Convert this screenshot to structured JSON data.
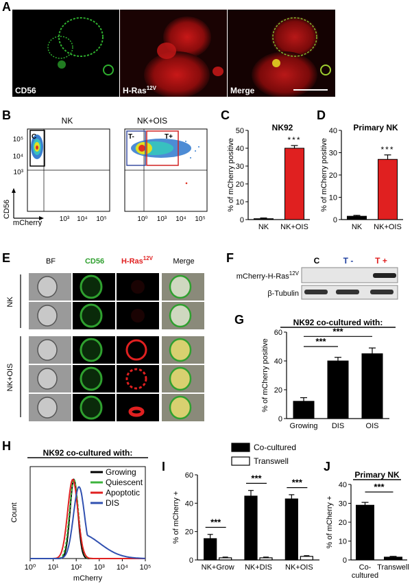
{
  "panel_letters": [
    "A",
    "B",
    "C",
    "D",
    "E",
    "F",
    "G",
    "H",
    "I",
    "J"
  ],
  "panelA": {
    "labels": [
      "CD56",
      "H-Ras",
      "Merge"
    ],
    "ras_sup": "12V"
  },
  "panelB": {
    "titles": [
      "NK",
      "NK+OIS"
    ],
    "gates": [
      "C",
      "T-",
      "T+"
    ],
    "y_axis": "CD56",
    "x_axis": "mCherry",
    "yticks": [
      "10⁵",
      "10⁴",
      "10³"
    ],
    "xticks_left": [
      "10³",
      "10⁴",
      "10⁵"
    ],
    "xticks_right": [
      "10⁰",
      "10³",
      "10⁴",
      "10⁵"
    ]
  },
  "panelE": {
    "col_headers": [
      "BF",
      "CD56",
      "H-Ras",
      "Merge"
    ],
    "ras_sup": "12V",
    "row_groups": [
      "NK",
      "NK+OIS"
    ],
    "colors": {
      "cd56": "#2fa02f",
      "ras": "#e02020"
    }
  },
  "panelF": {
    "lanes": [
      "C",
      "T -",
      "T +"
    ],
    "rows": [
      "mCherry-H-Ras",
      "β-Tubulin"
    ],
    "ras_sup": "12V",
    "lane_colors": [
      "#000000",
      "#1f3f9f",
      "#e02020"
    ]
  },
  "chart_data": [
    {
      "id": "C",
      "type": "bar",
      "title": "NK92",
      "categories": [
        "NK",
        "NK+OIS"
      ],
      "values": [
        0.5,
        40
      ],
      "errors": [
        0.4,
        1.5
      ],
      "colors": [
        "#000000",
        "#e02020"
      ],
      "ylabel": "% of mCherry positive",
      "ylim": [
        0,
        50
      ],
      "yticks": [
        0,
        10,
        20,
        30,
        40,
        50
      ],
      "sig": [
        "***"
      ]
    },
    {
      "id": "D",
      "type": "bar",
      "title": "Primary NK",
      "categories": [
        "NK",
        "NK+OIS"
      ],
      "values": [
        1.5,
        27
      ],
      "errors": [
        0.4,
        2.0
      ],
      "colors": [
        "#000000",
        "#e02020"
      ],
      "ylabel": "% of mCherry positive",
      "ylim": [
        0,
        40
      ],
      "yticks": [
        0,
        10,
        20,
        30,
        40
      ],
      "sig": [
        "***"
      ]
    },
    {
      "id": "G",
      "type": "bar",
      "title": "NK92 co-cultured with:",
      "categories": [
        "Growing",
        "DIS",
        "OIS"
      ],
      "values": [
        12,
        40,
        45
      ],
      "errors": [
        2.5,
        2.5,
        4.0
      ],
      "colors": [
        "#000000",
        "#000000",
        "#000000"
      ],
      "ylabel": "% of mCherry positive",
      "ylim": [
        0,
        60
      ],
      "yticks": [
        0,
        20,
        40,
        60
      ],
      "sig": [
        "***",
        "***"
      ]
    },
    {
      "id": "H",
      "type": "line",
      "title": "NK92 co-cultured with:",
      "xlabel": "mCherry",
      "ylabel": "Count",
      "xticks": [
        "10⁰",
        "10¹",
        "10²",
        "10³",
        "10⁴",
        "10⁵"
      ],
      "series": [
        {
          "name": "Growing",
          "color": "#000000",
          "peak": 1.9,
          "width": 0.17,
          "tail": 0.0
        },
        {
          "name": "Quiescent",
          "color": "#3cb33c",
          "peak": 1.9,
          "width": 0.19,
          "tail": 0.0
        },
        {
          "name": "Apoptotic",
          "color": "#e02020",
          "peak": 1.85,
          "width": 0.22,
          "tail": 0.0
        },
        {
          "name": "DIS",
          "color": "#3050b0",
          "peak": 2.12,
          "width": 0.24,
          "tail": 0.35
        }
      ]
    },
    {
      "id": "I",
      "type": "bar",
      "ylabel": "% of mCherry +",
      "categories": [
        "NK+Grow",
        "NK+DIS",
        "NK+OIS"
      ],
      "series": [
        {
          "name": "Co-cultured",
          "values": [
            15,
            45,
            43
          ],
          "errors": [
            3,
            4,
            3
          ]
        },
        {
          "name": "Transwell",
          "values": [
            1.5,
            1.5,
            2.5
          ],
          "errors": [
            0.5,
            0.5,
            0.5
          ]
        }
      ],
      "ylim": [
        0,
        60
      ],
      "yticks": [
        0,
        20,
        40,
        60
      ],
      "sig": [
        "***",
        "***",
        "***"
      ]
    },
    {
      "id": "J",
      "type": "bar",
      "title": "Primary NK",
      "ylabel": "% of mCherry +",
      "categories": [
        "Co-\ncultured",
        "Transwell"
      ],
      "values": [
        29,
        1.5
      ],
      "errors": [
        1.5,
        0.4
      ],
      "colors": [
        "#000000",
        "#000000"
      ],
      "ylim": [
        0,
        40
      ],
      "yticks": [
        0,
        10,
        20,
        30,
        40
      ],
      "sig": [
        "***"
      ]
    }
  ]
}
